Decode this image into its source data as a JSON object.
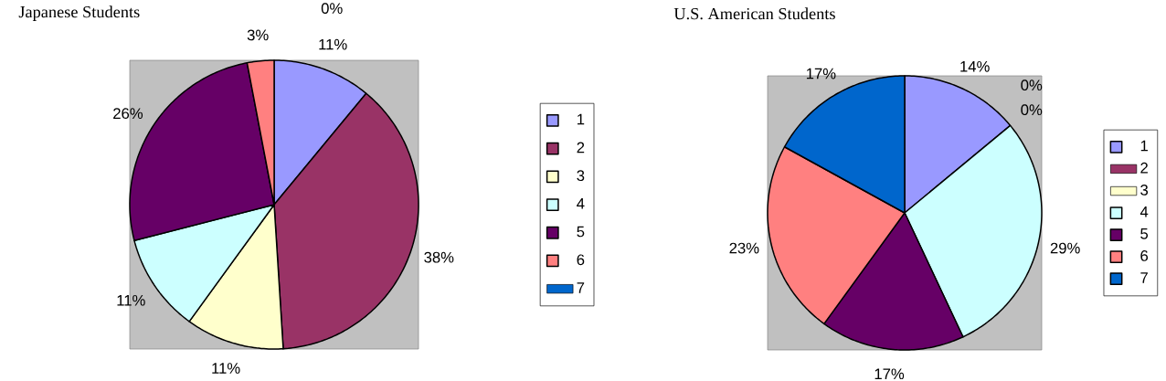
{
  "chart_data": [
    {
      "type": "pie",
      "title": "Japanese Students",
      "categories": [
        "1",
        "2",
        "3",
        "4",
        "5",
        "6",
        "7"
      ],
      "values": [
        11,
        38,
        11,
        11,
        26,
        3,
        0
      ],
      "value_labels": [
        "11%",
        "38%",
        "11%",
        "11%",
        "26%",
        "3%",
        "0%"
      ],
      "colors": [
        "#9999ff",
        "#993366",
        "#ffffcc",
        "#ccffff",
        "#660066",
        "#ff8080",
        "#0066cc"
      ],
      "legend": "right"
    },
    {
      "type": "pie",
      "title": "U.S. American Students",
      "categories": [
        "1",
        "2",
        "3",
        "4",
        "5",
        "6",
        "7"
      ],
      "values": [
        14,
        0,
        0,
        29,
        17,
        23,
        17
      ],
      "value_labels": [
        "14%",
        "0%",
        "0%",
        "29%",
        "17%",
        "23%",
        "17%"
      ],
      "colors": [
        "#9999ff",
        "#993366",
        "#ffffcc",
        "#ccffff",
        "#660066",
        "#ff8080",
        "#0066cc"
      ],
      "legend": "right"
    }
  ]
}
